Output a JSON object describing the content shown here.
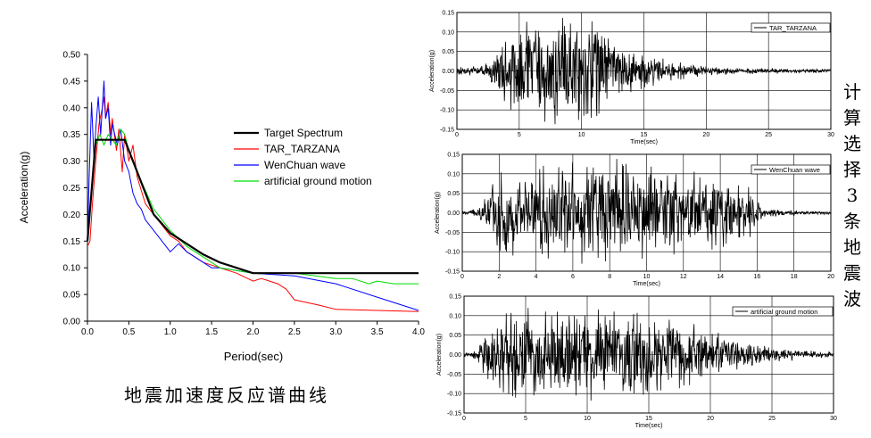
{
  "figure_caption": "地震加速度反应谱曲线",
  "side_caption": "计算选择3条地震波",
  "chart_data": [
    {
      "type": "line",
      "title": "",
      "xlabel": "Period(sec)",
      "ylabel": "Acceleration(g)",
      "xlim": [
        0,
        4.0
      ],
      "ylim": [
        0,
        0.5
      ],
      "xticks": [
        "0.0",
        "0.5",
        "1.0",
        "1.5",
        "2.0",
        "2.5",
        "3.0",
        "3.5",
        "4.0"
      ],
      "yticks": [
        "0.00",
        "0.05",
        "0.10",
        "0.15",
        "0.20",
        "0.25",
        "0.30",
        "0.35",
        "0.40",
        "0.45",
        "0.50"
      ],
      "grid": false,
      "legend_position": "right",
      "series": [
        {
          "name": "Target Spectrum",
          "color": "#000000",
          "x": [
            0,
            0.1,
            0.45,
            0.6,
            0.8,
            1.0,
            1.2,
            1.4,
            1.6,
            1.8,
            2.0,
            2.5,
            3.0,
            3.5,
            4.0
          ],
          "y": [
            0.15,
            0.34,
            0.34,
            0.28,
            0.2,
            0.165,
            0.145,
            0.125,
            0.11,
            0.1,
            0.09,
            0.09,
            0.09,
            0.09,
            0.09
          ]
        },
        {
          "name": "TAR_TARZANA",
          "color": "#ff0000",
          "x": [
            0,
            0.03,
            0.06,
            0.1,
            0.14,
            0.18,
            0.2,
            0.22,
            0.25,
            0.28,
            0.3,
            0.35,
            0.38,
            0.42,
            0.45,
            0.5,
            0.55,
            0.6,
            0.7,
            0.8,
            0.9,
            1.0,
            1.1,
            1.2,
            1.3,
            1.4,
            1.5,
            1.6,
            1.8,
            2.0,
            2.1,
            2.2,
            2.3,
            2.4,
            2.5,
            2.8,
            3.0,
            3.5,
            4.0
          ],
          "y": [
            0.14,
            0.15,
            0.22,
            0.3,
            0.37,
            0.4,
            0.42,
            0.38,
            0.41,
            0.35,
            0.38,
            0.32,
            0.36,
            0.28,
            0.35,
            0.3,
            0.33,
            0.27,
            0.22,
            0.2,
            0.18,
            0.16,
            0.15,
            0.13,
            0.12,
            0.11,
            0.105,
            0.1,
            0.09,
            0.075,
            0.08,
            0.075,
            0.07,
            0.06,
            0.04,
            0.03,
            0.022,
            0.02,
            0.018
          ]
        },
        {
          "name": "WenChuan wave",
          "color": "#0000ff",
          "x": [
            0,
            0.02,
            0.05,
            0.08,
            0.1,
            0.13,
            0.16,
            0.2,
            0.22,
            0.25,
            0.28,
            0.3,
            0.33,
            0.36,
            0.4,
            0.45,
            0.5,
            0.55,
            0.6,
            0.65,
            0.7,
            0.8,
            0.9,
            1.0,
            1.1,
            1.2,
            1.3,
            1.4,
            1.5,
            1.6,
            1.8,
            2.0,
            2.5,
            3.0,
            3.5,
            4.0
          ],
          "y": [
            0.15,
            0.27,
            0.41,
            0.3,
            0.36,
            0.42,
            0.35,
            0.45,
            0.38,
            0.4,
            0.33,
            0.37,
            0.35,
            0.33,
            0.36,
            0.3,
            0.28,
            0.24,
            0.22,
            0.21,
            0.19,
            0.17,
            0.15,
            0.13,
            0.145,
            0.13,
            0.12,
            0.11,
            0.1,
            0.1,
            0.095,
            0.09,
            0.085,
            0.07,
            0.045,
            0.02
          ]
        },
        {
          "name": "artificial ground motion",
          "color": "#00dd00",
          "x": [
            0,
            0.05,
            0.1,
            0.15,
            0.2,
            0.25,
            0.3,
            0.35,
            0.4,
            0.45,
            0.5,
            0.6,
            0.8,
            1.0,
            1.2,
            1.4,
            1.6,
            1.8,
            2.0,
            2.5,
            3.0,
            3.2,
            3.4,
            3.5,
            3.7,
            4.0
          ],
          "y": [
            0.15,
            0.24,
            0.33,
            0.35,
            0.33,
            0.35,
            0.34,
            0.33,
            0.36,
            0.35,
            0.32,
            0.28,
            0.21,
            0.17,
            0.14,
            0.12,
            0.1,
            0.095,
            0.09,
            0.09,
            0.08,
            0.08,
            0.07,
            0.075,
            0.07,
            0.07
          ]
        }
      ]
    },
    {
      "type": "line",
      "legend": "TAR_TARZANA",
      "xlabel": "Time(sec)",
      "ylabel": "Acceleration(g)",
      "xlim": [
        0,
        30
      ],
      "ylim": [
        -0.15,
        0.15
      ],
      "xticks": [
        "0",
        "5",
        "10",
        "15",
        "20",
        "25",
        "30"
      ],
      "yticks": [
        "-0.15",
        "-0.10",
        "-0.05",
        "0.00",
        "0.05",
        "0.10",
        "0.15"
      ],
      "grid": true,
      "duration": 30,
      "envelope_t": [
        0,
        2,
        3,
        4,
        6,
        9,
        11,
        12,
        14,
        16,
        18,
        20,
        22,
        30
      ],
      "envelope_a": [
        0.01,
        0.012,
        0.05,
        0.1,
        0.12,
        0.13,
        0.13,
        0.08,
        0.05,
        0.035,
        0.02,
        0.012,
        0.008,
        0.005
      ]
    },
    {
      "type": "line",
      "legend": "WenChuan wave",
      "xlabel": "Time(sec)",
      "ylabel": "Acceleration(g)",
      "xlim": [
        0,
        20
      ],
      "ylim": [
        -0.15,
        0.15
      ],
      "xticks": [
        "0",
        "2",
        "4",
        "6",
        "8",
        "10",
        "12",
        "14",
        "16",
        "18",
        "20"
      ],
      "yticks": [
        "-0.15",
        "-0.10",
        "-0.05",
        "0.00",
        "0.05",
        "0.10",
        "0.15"
      ],
      "grid": true,
      "duration": 20,
      "envelope_t": [
        0,
        0.8,
        1.3,
        2,
        4,
        6,
        8,
        10,
        12,
        14,
        15.5,
        16,
        16.5,
        18,
        20
      ],
      "envelope_a": [
        0.005,
        0.01,
        0.05,
        0.1,
        0.11,
        0.12,
        0.13,
        0.11,
        0.1,
        0.09,
        0.07,
        0.03,
        0.012,
        0.006,
        0.004
      ]
    },
    {
      "type": "line",
      "legend": "artificial ground motion",
      "xlabel": "Time(sec)",
      "ylabel": "Acceleration(g)",
      "xlim": [
        0,
        30
      ],
      "ylim": [
        -0.15,
        0.15
      ],
      "xticks": [
        "0",
        "5",
        "10",
        "15",
        "20",
        "25",
        "30"
      ],
      "yticks": [
        "-0.15",
        "-0.10",
        "-0.05",
        "0.00",
        "0.05",
        "0.10",
        "0.15"
      ],
      "grid": true,
      "duration": 30,
      "envelope_t": [
        0,
        1,
        2,
        3,
        10,
        15,
        18,
        20,
        22,
        25,
        28,
        30
      ],
      "envelope_a": [
        0.005,
        0.01,
        0.08,
        0.11,
        0.11,
        0.1,
        0.085,
        0.06,
        0.04,
        0.02,
        0.01,
        0.006
      ]
    }
  ]
}
